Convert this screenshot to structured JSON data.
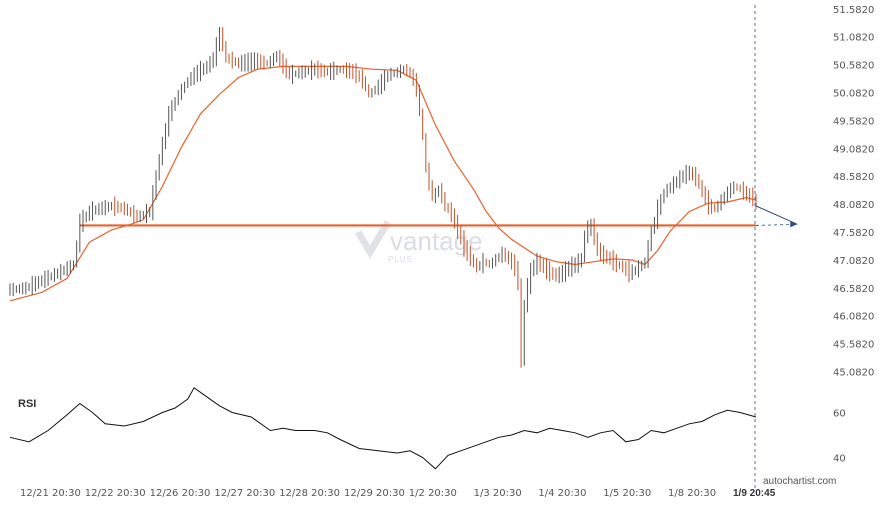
{
  "chart_data": [
    {
      "type": "candlestick",
      "title": "",
      "ylim": [
        44.93,
        51.65
      ],
      "y_ticks": [
        "51.5820",
        "51.0820",
        "50.5820",
        "50.0820",
        "49.5820",
        "49.0820",
        "48.5820",
        "48.0820",
        "47.5820",
        "47.0820",
        "46.5820",
        "46.0820",
        "45.5820",
        "45.0820"
      ],
      "y_tick_values": [
        51.582,
        51.082,
        50.582,
        50.082,
        49.582,
        49.082,
        48.582,
        48.082,
        47.582,
        47.082,
        46.582,
        46.082,
        45.582,
        45.082
      ],
      "x_ticks": [
        "12/21 20:30",
        "12/22 20:30",
        "12/26 20:30",
        "12/27 20:30",
        "12/28 20:30",
        "12/29 20:30",
        "1/2 20:30",
        "1/3 20:30",
        "1/4 20:30",
        "1/5 20:30",
        "1/8 20:30"
      ],
      "last_time_label": "1/9 20:45",
      "price_path": [
        [
          0,
          46.55
        ],
        [
          5,
          46.58
        ],
        [
          10,
          46.72
        ],
        [
          15,
          46.85
        ],
        [
          20,
          47.0
        ],
        [
          22,
          47.75
        ],
        [
          25,
          47.95
        ],
        [
          28,
          48.0
        ],
        [
          32,
          48.05
        ],
        [
          36,
          48.0
        ],
        [
          40,
          47.85
        ],
        [
          44,
          47.95
        ],
        [
          47,
          48.9
        ],
        [
          50,
          49.7
        ],
        [
          53,
          50.05
        ],
        [
          56,
          50.3
        ],
        [
          59,
          50.45
        ],
        [
          62,
          50.55
        ],
        [
          64,
          50.7
        ],
        [
          66,
          51.15
        ],
        [
          68,
          50.7
        ],
        [
          72,
          50.6
        ],
        [
          77,
          50.65
        ],
        [
          81,
          50.6
        ],
        [
          84,
          50.75
        ],
        [
          86,
          50.55
        ],
        [
          88,
          50.4
        ],
        [
          92,
          50.45
        ],
        [
          96,
          50.5
        ],
        [
          100,
          50.45
        ],
        [
          104,
          50.5
        ],
        [
          108,
          50.45
        ],
        [
          111,
          50.3
        ],
        [
          113,
          50.05
        ],
        [
          116,
          50.2
        ],
        [
          119,
          50.4
        ],
        [
          122,
          50.45
        ],
        [
          124,
          50.5
        ],
        [
          126,
          50.42
        ],
        [
          128,
          50.15
        ],
        [
          130,
          49.3
        ],
        [
          131,
          48.7
        ],
        [
          133,
          48.2
        ],
        [
          135,
          48.35
        ],
        [
          137,
          48.05
        ],
        [
          139,
          47.9
        ],
        [
          141,
          47.6
        ],
        [
          143,
          47.3
        ],
        [
          145,
          47.1
        ],
        [
          147,
          46.95
        ],
        [
          149,
          47.05
        ],
        [
          151,
          47.0
        ],
        [
          153,
          47.1
        ],
        [
          155,
          47.2
        ],
        [
          157,
          47.1
        ],
        [
          159,
          46.95
        ],
        [
          160,
          46.65
        ],
        [
          161,
          45.25
        ],
        [
          162,
          46.3
        ],
        [
          164,
          46.9
        ],
        [
          166,
          47.05
        ],
        [
          168,
          46.95
        ],
        [
          170,
          46.85
        ],
        [
          172,
          46.8
        ],
        [
          174,
          46.85
        ],
        [
          176,
          46.95
        ],
        [
          178,
          47.0
        ],
        [
          180,
          47.1
        ],
        [
          181,
          47.55
        ],
        [
          183,
          47.7
        ],
        [
          185,
          47.25
        ],
        [
          187,
          47.15
        ],
        [
          189,
          47.1
        ],
        [
          191,
          47.0
        ],
        [
          193,
          46.95
        ],
        [
          195,
          46.85
        ],
        [
          197,
          46.9
        ],
        [
          200,
          47.05
        ],
        [
          202,
          47.6
        ],
        [
          204,
          48.0
        ],
        [
          206,
          48.3
        ],
        [
          208,
          48.4
        ],
        [
          210,
          48.5
        ],
        [
          212,
          48.6
        ],
        [
          214,
          48.65
        ],
        [
          216,
          48.55
        ],
        [
          218,
          48.3
        ],
        [
          220,
          48.05
        ],
        [
          222,
          48.0
        ],
        [
          224,
          48.15
        ],
        [
          226,
          48.3
        ],
        [
          228,
          48.4
        ],
        [
          230,
          48.35
        ],
        [
          232,
          48.25
        ],
        [
          234,
          48.2
        ],
        [
          235,
          48.05
        ]
      ],
      "moving_average": [
        [
          0,
          46.35
        ],
        [
          10,
          46.5
        ],
        [
          18,
          46.75
        ],
        [
          25,
          47.4
        ],
        [
          32,
          47.62
        ],
        [
          38,
          47.72
        ],
        [
          42,
          47.8
        ],
        [
          48,
          48.4
        ],
        [
          54,
          49.1
        ],
        [
          60,
          49.7
        ],
        [
          66,
          50.05
        ],
        [
          72,
          50.35
        ],
        [
          78,
          50.5
        ],
        [
          86,
          50.55
        ],
        [
          96,
          50.55
        ],
        [
          106,
          50.55
        ],
        [
          114,
          50.5
        ],
        [
          122,
          50.48
        ],
        [
          128,
          50.3
        ],
        [
          134,
          49.5
        ],
        [
          140,
          48.85
        ],
        [
          146,
          48.35
        ],
        [
          150,
          47.95
        ],
        [
          154,
          47.65
        ],
        [
          158,
          47.45
        ],
        [
          162,
          47.3
        ],
        [
          166,
          47.15
        ],
        [
          172,
          47.05
        ],
        [
          178,
          47.0
        ],
        [
          184,
          47.05
        ],
        [
          190,
          47.1
        ],
        [
          196,
          47.08
        ],
        [
          200,
          47.0
        ],
        [
          204,
          47.25
        ],
        [
          208,
          47.6
        ],
        [
          214,
          47.95
        ],
        [
          220,
          48.1
        ],
        [
          226,
          48.12
        ],
        [
          232,
          48.2
        ],
        [
          235,
          48.15
        ]
      ],
      "support_level": 47.7,
      "forecast_end": [
        248,
        47.72
      ],
      "watermark": "vantage",
      "watermark_sub": "PLUS",
      "brand": "autochartist.com"
    },
    {
      "type": "line",
      "name": "RSI",
      "title": "RSI",
      "ylim": [
        30,
        70
      ],
      "y_ticks": [
        "60",
        "40"
      ],
      "y_tick_values": [
        60,
        40
      ],
      "values": [
        [
          0,
          49
        ],
        [
          6,
          47
        ],
        [
          12,
          52
        ],
        [
          18,
          59
        ],
        [
          22,
          64
        ],
        [
          26,
          60
        ],
        [
          30,
          55
        ],
        [
          36,
          54
        ],
        [
          42,
          56
        ],
        [
          48,
          60
        ],
        [
          52,
          62
        ],
        [
          56,
          66
        ],
        [
          58,
          71
        ],
        [
          62,
          67
        ],
        [
          66,
          63
        ],
        [
          70,
          60
        ],
        [
          76,
          58
        ],
        [
          82,
          52
        ],
        [
          86,
          53
        ],
        [
          90,
          52
        ],
        [
          96,
          52
        ],
        [
          100,
          51
        ],
        [
          104,
          48
        ],
        [
          110,
          44
        ],
        [
          116,
          43
        ],
        [
          122,
          42
        ],
        [
          126,
          43
        ],
        [
          130,
          40
        ],
        [
          134,
          35
        ],
        [
          138,
          41
        ],
        [
          142,
          43
        ],
        [
          146,
          45
        ],
        [
          150,
          47
        ],
        [
          154,
          49
        ],
        [
          158,
          50
        ],
        [
          162,
          52
        ],
        [
          166,
          51
        ],
        [
          170,
          53
        ],
        [
          174,
          52
        ],
        [
          178,
          51
        ],
        [
          182,
          49
        ],
        [
          186,
          51
        ],
        [
          190,
          52
        ],
        [
          194,
          47
        ],
        [
          198,
          48
        ],
        [
          202,
          52
        ],
        [
          206,
          51
        ],
        [
          210,
          53
        ],
        [
          214,
          55
        ],
        [
          218,
          56
        ],
        [
          222,
          59
        ],
        [
          226,
          61
        ],
        [
          230,
          60
        ],
        [
          235,
          58
        ]
      ]
    }
  ]
}
